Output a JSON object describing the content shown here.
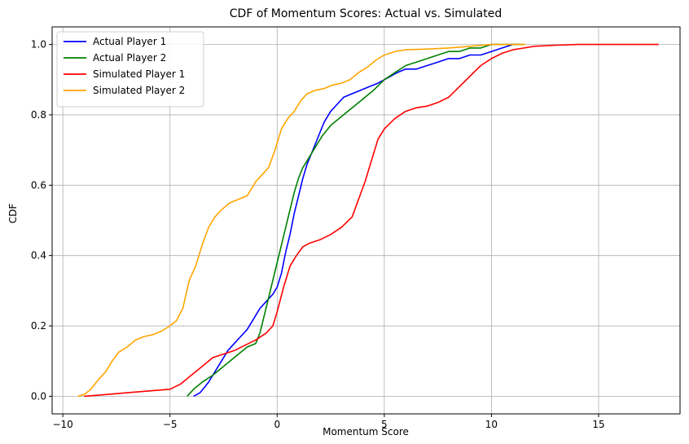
{
  "chart_data": {
    "type": "line",
    "title": "CDF of Momentum Scores: Actual vs. Simulated",
    "xlabel": "Momentum Score",
    "ylabel": "CDF",
    "xlim": [
      -10.5,
      18.8
    ],
    "ylim": [
      -0.05,
      1.05
    ],
    "xticks": [
      -10,
      -5,
      0,
      5,
      10,
      15
    ],
    "yticks": [
      0.0,
      0.2,
      0.4,
      0.6,
      0.8,
      1.0
    ],
    "grid": true,
    "legend_position": "top-left",
    "series": [
      {
        "name": "Actual Player 1",
        "color": "#0000ff",
        "x": [
          -3.9,
          -3.6,
          -3.2,
          -2.9,
          -2.6,
          -2.3,
          -2.0,
          -1.7,
          -1.4,
          -1.1,
          -0.8,
          -0.5,
          -0.2,
          0.0,
          0.2,
          0.4,
          0.6,
          0.8,
          1.0,
          1.2,
          1.4,
          1.6,
          1.8,
          2.0,
          2.2,
          2.5,
          2.8,
          3.1,
          3.5,
          3.9,
          4.3,
          4.7,
          5.0,
          5.3,
          5.6,
          6.0,
          6.5,
          7.0,
          7.5,
          8.0,
          8.5,
          9.0,
          9.5,
          10.0,
          10.5,
          11.0,
          11.3
        ],
        "y": [
          0.0,
          0.01,
          0.04,
          0.07,
          0.1,
          0.13,
          0.15,
          0.17,
          0.19,
          0.22,
          0.25,
          0.27,
          0.29,
          0.31,
          0.35,
          0.41,
          0.46,
          0.52,
          0.57,
          0.62,
          0.66,
          0.69,
          0.72,
          0.75,
          0.78,
          0.81,
          0.83,
          0.85,
          0.86,
          0.87,
          0.88,
          0.89,
          0.9,
          0.91,
          0.92,
          0.93,
          0.93,
          0.94,
          0.95,
          0.96,
          0.96,
          0.97,
          0.97,
          0.98,
          0.99,
          1.0,
          1.0
        ]
      },
      {
        "name": "Actual Player 2",
        "color": "#008000",
        "x": [
          -4.2,
          -3.9,
          -3.5,
          -3.0,
          -2.6,
          -2.2,
          -1.8,
          -1.4,
          -1.0,
          -0.8,
          -0.6,
          -0.4,
          -0.2,
          0.0,
          0.2,
          0.4,
          0.6,
          0.8,
          1.0,
          1.2,
          1.5,
          1.8,
          2.1,
          2.5,
          2.9,
          3.3,
          3.7,
          4.1,
          4.5,
          5.0,
          5.5,
          6.0,
          6.5,
          7.0,
          7.5,
          8.0,
          8.5,
          9.0,
          9.5,
          10.0,
          10.5,
          11.0,
          11.5
        ],
        "y": [
          0.0,
          0.02,
          0.04,
          0.06,
          0.08,
          0.1,
          0.12,
          0.14,
          0.15,
          0.18,
          0.23,
          0.28,
          0.33,
          0.38,
          0.43,
          0.48,
          0.53,
          0.58,
          0.62,
          0.65,
          0.68,
          0.71,
          0.74,
          0.77,
          0.79,
          0.81,
          0.83,
          0.85,
          0.87,
          0.9,
          0.92,
          0.94,
          0.95,
          0.96,
          0.97,
          0.98,
          0.98,
          0.99,
          0.99,
          1.0,
          1.0,
          1.0,
          1.0
        ]
      },
      {
        "name": "Simulated Player 1",
        "color": "#ff0000",
        "x": [
          -9.0,
          -8.0,
          -7.0,
          -6.0,
          -5.0,
          -4.5,
          -4.0,
          -3.5,
          -3.0,
          -2.5,
          -2.0,
          -1.5,
          -1.0,
          -0.5,
          -0.2,
          0.0,
          0.3,
          0.6,
          0.9,
          1.2,
          1.5,
          2.0,
          2.5,
          3.0,
          3.5,
          3.8,
          4.1,
          4.4,
          4.7,
          5.0,
          5.5,
          6.0,
          6.5,
          7.0,
          7.5,
          8.0,
          8.5,
          9.0,
          9.5,
          10.0,
          10.5,
          11.0,
          12.0,
          13.0,
          14.0,
          15.0,
          16.0,
          17.0,
          17.8
        ],
        "y": [
          0.0,
          0.005,
          0.01,
          0.015,
          0.02,
          0.035,
          0.06,
          0.085,
          0.11,
          0.12,
          0.13,
          0.145,
          0.16,
          0.18,
          0.2,
          0.24,
          0.31,
          0.37,
          0.4,
          0.425,
          0.435,
          0.445,
          0.46,
          0.48,
          0.51,
          0.56,
          0.61,
          0.67,
          0.73,
          0.76,
          0.79,
          0.81,
          0.82,
          0.825,
          0.835,
          0.85,
          0.88,
          0.91,
          0.94,
          0.96,
          0.975,
          0.985,
          0.995,
          0.998,
          1.0,
          1.0,
          1.0,
          1.0,
          1.0
        ]
      },
      {
        "name": "Simulated Player 2",
        "color": "#ffa500",
        "x": [
          -9.3,
          -9.0,
          -8.7,
          -8.3,
          -8.0,
          -7.7,
          -7.4,
          -7.0,
          -6.6,
          -6.2,
          -5.8,
          -5.4,
          -5.0,
          -4.7,
          -4.4,
          -4.1,
          -3.8,
          -3.5,
          -3.2,
          -2.9,
          -2.6,
          -2.2,
          -1.8,
          -1.4,
          -1.0,
          -0.7,
          -0.4,
          -0.1,
          0.2,
          0.5,
          0.8,
          1.1,
          1.4,
          1.8,
          2.2,
          2.6,
          3.0,
          3.4,
          3.8,
          4.2,
          4.6,
          5.0,
          5.5,
          6.0,
          7.0,
          8.0,
          9.0,
          10.0,
          10.5,
          11.0,
          11.6
        ],
        "y": [
          0.0,
          0.005,
          0.02,
          0.05,
          0.07,
          0.1,
          0.125,
          0.14,
          0.16,
          0.17,
          0.175,
          0.185,
          0.2,
          0.215,
          0.25,
          0.33,
          0.37,
          0.43,
          0.48,
          0.51,
          0.53,
          0.55,
          0.56,
          0.57,
          0.61,
          0.63,
          0.65,
          0.7,
          0.76,
          0.79,
          0.81,
          0.84,
          0.86,
          0.87,
          0.875,
          0.885,
          0.89,
          0.9,
          0.92,
          0.935,
          0.955,
          0.97,
          0.98,
          0.985,
          0.987,
          0.99,
          0.995,
          1.0,
          1.0,
          1.0,
          1.0
        ]
      }
    ]
  }
}
